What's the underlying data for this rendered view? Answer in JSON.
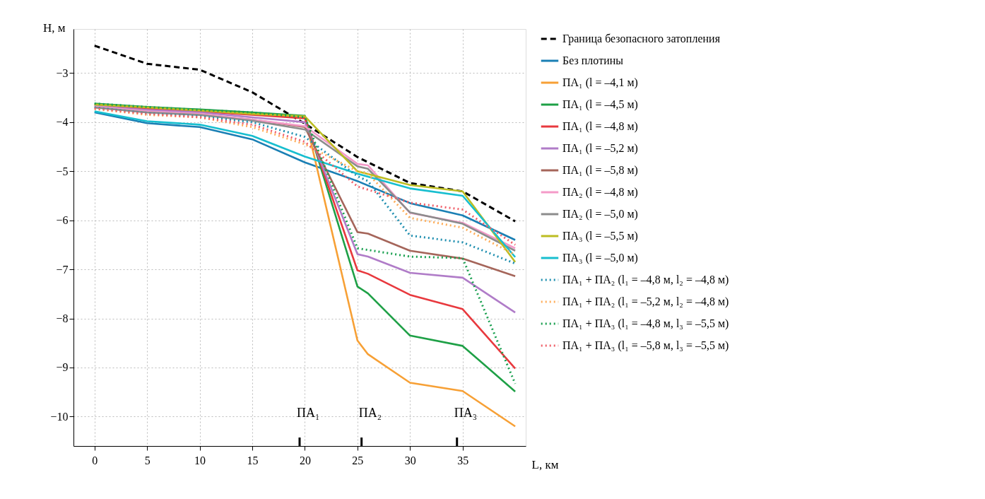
{
  "chart_data": {
    "type": "line",
    "xlabel": "L, км",
    "ylabel": "H, м",
    "xlim": [
      -2,
      41
    ],
    "ylim": [
      -10.6,
      -2.1
    ],
    "xticks": [
      0,
      5,
      10,
      15,
      20,
      25,
      30,
      35
    ],
    "yticks": [
      -10,
      -9,
      -8,
      -7,
      -6,
      -5,
      -4,
      -3
    ],
    "grid": true,
    "legend": "right",
    "annotations": [
      "ПА₁",
      "ПА₂",
      "ПА₃"
    ],
    "series": [
      {
        "name": "Граница безопасного затопления",
        "color": "#000000",
        "line_style": "dashed",
        "x": [
          0,
          5,
          10,
          15,
          20,
          25,
          30,
          35,
          40
        ],
        "values": [
          -2.44,
          -2.81,
          -2.93,
          -3.39,
          -4.03,
          -4.71,
          -5.24,
          -5.41,
          -6.02
        ]
      },
      {
        "name": "Без плотины",
        "color": "#1a7fb4",
        "line_style": "solid",
        "x": [
          0,
          5,
          10,
          15,
          20,
          25,
          30,
          35,
          40
        ],
        "values": [
          -3.8,
          -4.02,
          -4.1,
          -4.35,
          -4.82,
          -5.2,
          -5.65,
          -5.9,
          -6.4
        ]
      },
      {
        "name": "ПА₁  (l = –4,1 м)",
        "color": "#f7a035",
        "line_style": "solid",
        "x": [
          0,
          5,
          10,
          15,
          20,
          25,
          26,
          30,
          35,
          40
        ],
        "values": [
          -3.63,
          -3.7,
          -3.75,
          -3.82,
          -3.88,
          -8.45,
          -8.73,
          -9.31,
          -9.48,
          -10.2
        ]
      },
      {
        "name": "ПА₁  (l = –4,5 м)",
        "color": "#1ea046",
        "line_style": "solid",
        "x": [
          0,
          5,
          10,
          15,
          20,
          25,
          26,
          30,
          35,
          40
        ],
        "values": [
          -3.62,
          -3.69,
          -3.74,
          -3.8,
          -3.87,
          -7.35,
          -7.49,
          -8.35,
          -8.56,
          -9.49
        ]
      },
      {
        "name": "ПА₁  (l = –4,8 м)",
        "color": "#e8393e",
        "line_style": "solid",
        "x": [
          0,
          5,
          10,
          15,
          20,
          25,
          26,
          30,
          35,
          40
        ],
        "values": [
          -3.65,
          -3.72,
          -3.78,
          -3.85,
          -3.92,
          -7.02,
          -7.09,
          -7.52,
          -7.81,
          -9.02
        ]
      },
      {
        "name": "ПА₁  (l = –5,2 м)",
        "color": "#b07cc8",
        "line_style": "solid",
        "x": [
          0,
          5,
          10,
          15,
          20,
          25,
          26,
          30,
          35,
          40
        ],
        "values": [
          -3.67,
          -3.75,
          -3.8,
          -3.9,
          -4.0,
          -6.69,
          -6.74,
          -7.07,
          -7.17,
          -7.88
        ]
      },
      {
        "name": "ПА₁  (l = –5,8 м)",
        "color": "#a5655a",
        "line_style": "solid",
        "x": [
          0,
          5,
          10,
          15,
          20,
          25,
          26,
          30,
          35,
          40
        ],
        "values": [
          -3.7,
          -3.8,
          -3.85,
          -3.95,
          -4.1,
          -6.24,
          -6.27,
          -6.62,
          -6.78,
          -7.14
        ]
      },
      {
        "name": "ПА₂  (l = –4,8 м)",
        "color": "#f49ac8",
        "line_style": "solid",
        "x": [
          0,
          5,
          10,
          15,
          20,
          25,
          26,
          30,
          35,
          40
        ],
        "values": [
          -3.68,
          -3.78,
          -3.83,
          -3.95,
          -4.08,
          -4.85,
          -4.88,
          -5.85,
          -6.05,
          -6.57
        ]
      },
      {
        "name": "ПА₂  (l = –5,0 м)",
        "color": "#8c8c8c",
        "line_style": "solid",
        "x": [
          0,
          5,
          10,
          15,
          20,
          25,
          26,
          30,
          35,
          40
        ],
        "values": [
          -3.7,
          -3.8,
          -3.85,
          -3.97,
          -4.15,
          -4.9,
          -4.95,
          -5.84,
          -6.07,
          -6.62
        ]
      },
      {
        "name": "ПА₃  (l = –5,5 м)",
        "color": "#bcbd22",
        "line_style": "solid",
        "x": [
          0,
          5,
          10,
          15,
          20,
          25,
          30,
          35,
          40
        ],
        "values": [
          -3.64,
          -3.7,
          -3.76,
          -3.83,
          -3.88,
          -5.0,
          -5.28,
          -5.41,
          -6.85
        ]
      },
      {
        "name": "ПА₃  (l = –5,0 м)",
        "color": "#17becf",
        "line_style": "solid",
        "x": [
          0,
          5,
          10,
          15,
          20,
          25,
          30,
          35,
          40
        ],
        "values": [
          -3.78,
          -3.98,
          -4.05,
          -4.28,
          -4.7,
          -5.05,
          -5.35,
          -5.5,
          -6.75
        ]
      },
      {
        "name": "ПА₁ + ПА₂  (l₁ = –4,8 м, l₂ = –4,8 м)",
        "color": "#1f8fb0",
        "line_style": "dotted",
        "x": [
          0,
          5,
          10,
          15,
          20,
          25,
          26,
          30,
          35,
          40
        ],
        "values": [
          -3.7,
          -3.82,
          -3.88,
          -4.0,
          -4.3,
          -5.1,
          -5.2,
          -6.31,
          -6.45,
          -6.88
        ]
      },
      {
        "name": "ПА₁ + ПА₂  (l₁ = –5,2 м, l₂ = –4,8 м)",
        "color": "#ffae5a",
        "line_style": "dotted",
        "x": [
          0,
          5,
          10,
          15,
          20,
          25,
          26,
          30,
          35,
          40
        ],
        "values": [
          -3.73,
          -3.85,
          -3.9,
          -4.1,
          -4.45,
          -5.0,
          -5.05,
          -5.95,
          -6.15,
          -6.7
        ]
      },
      {
        "name": "ПА₁ + ПА₃  (l₁ = –4,8 м, l₃ = –5,5 м)",
        "color": "#1aa050",
        "line_style": "dotted",
        "x": [
          0,
          5,
          10,
          15,
          20,
          25,
          30,
          35,
          40
        ],
        "values": [
          -3.62,
          -3.69,
          -3.75,
          -3.8,
          -3.9,
          -6.57,
          -6.74,
          -6.77,
          -9.33
        ]
      },
      {
        "name": "ПА₁ + ПА₃  (l₁ = –5,8 м, l₃ = –5,5 м)",
        "color": "#f0606a",
        "line_style": "dotted",
        "x": [
          0,
          5,
          10,
          15,
          20,
          25,
          30,
          35,
          40
        ],
        "values": [
          -3.72,
          -3.83,
          -3.9,
          -4.05,
          -4.4,
          -5.31,
          -5.64,
          -5.78,
          -6.5
        ]
      }
    ]
  }
}
